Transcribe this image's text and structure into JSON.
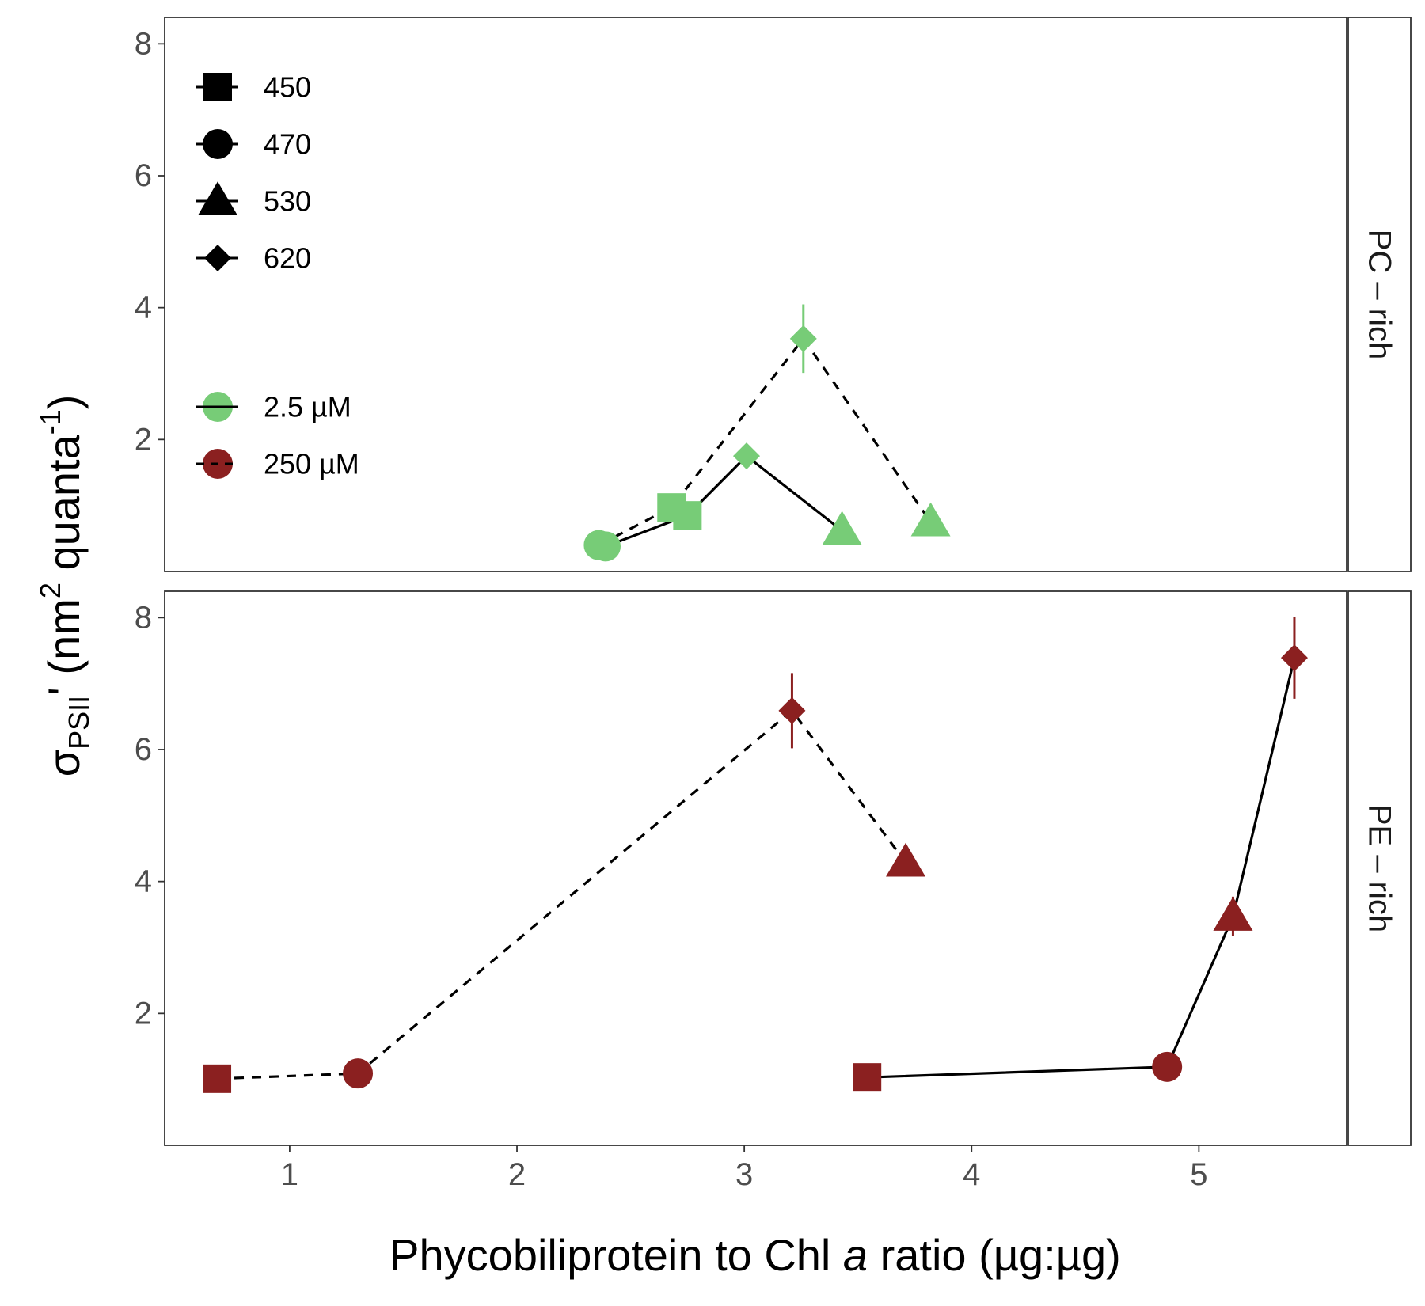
{
  "chart_data": {
    "type": "scatter",
    "xlabel_main": "Phycobiliprotein to Chl ",
    "xlabel_italic": "a",
    "xlabel_rest": " ratio (µg:µg)",
    "ylabel": {
      "sigma": "σ",
      "sub": "PSII",
      "prime": "'",
      "open": " (nm",
      "sup2": "2",
      "mid": " quanta",
      "supneg1": "-1",
      "close": ")"
    },
    "xlim": [
      0.45,
      5.65
    ],
    "ylim": [
      0,
      8.4
    ],
    "xticks": [
      1,
      2,
      3,
      4,
      5
    ],
    "yticks": [
      2,
      4,
      6,
      8
    ],
    "colors": {
      "low": "#77cc77",
      "high": "#8b2020",
      "line": "#000000"
    },
    "legend_shape": {
      "title": "",
      "entries": [
        {
          "label": "450",
          "shape": "square"
        },
        {
          "label": "470",
          "shape": "circle"
        },
        {
          "label": "530",
          "shape": "triangle"
        },
        {
          "label": "620",
          "shape": "diamond"
        }
      ]
    },
    "legend_conc": {
      "entries": [
        {
          "label": " 2.5 µM",
          "color": "low",
          "dash": "solid"
        },
        {
          "label": "250 µM",
          "color": "high",
          "dash": "dashed"
        }
      ]
    },
    "panels": [
      {
        "strip": "PC – rich",
        "series": [
          {
            "conc": " 2.5 µM",
            "color": "low",
            "dash": "solid",
            "points": [
              {
                "wl": "470",
                "x": 2.39,
                "y": 0.38,
                "err": 0.05
              },
              {
                "wl": "450",
                "x": 2.75,
                "y": 0.85,
                "err": 0.06
              },
              {
                "wl": "620",
                "x": 3.01,
                "y": 1.75,
                "err": 0.12
              },
              {
                "wl": "530",
                "x": 3.43,
                "y": 0.62,
                "err": 0.05
              }
            ]
          },
          {
            "conc": "250 µM",
            "color": "low",
            "dash": "dashed",
            "points": [
              {
                "wl": "470",
                "x": 2.36,
                "y": 0.4,
                "err": 0.05
              },
              {
                "wl": "450",
                "x": 2.68,
                "y": 0.97,
                "err": 0.06
              },
              {
                "wl": "620",
                "x": 3.26,
                "y": 3.53,
                "err": 0.52
              },
              {
                "wl": "530",
                "x": 3.82,
                "y": 0.75,
                "err": 0.06
              }
            ]
          }
        ]
      },
      {
        "strip": "PE – rich",
        "series": [
          {
            "conc": " 2.5 µM",
            "color": "high",
            "dash": "solid",
            "points": [
              {
                "wl": "450",
                "x": 3.54,
                "y": 1.03,
                "err": 0.05
              },
              {
                "wl": "470",
                "x": 4.86,
                "y": 1.19,
                "err": 0.06
              },
              {
                "wl": "530",
                "x": 5.15,
                "y": 3.47,
                "err": 0.3
              },
              {
                "wl": "620",
                "x": 5.42,
                "y": 7.39,
                "err": 0.62
              }
            ]
          },
          {
            "conc": "250 µM",
            "color": "high",
            "dash": "dashed",
            "points": [
              {
                "wl": "450",
                "x": 0.68,
                "y": 1.01,
                "err": 0.05
              },
              {
                "wl": "470",
                "x": 1.3,
                "y": 1.09,
                "err": 0.05
              },
              {
                "wl": "620",
                "x": 3.21,
                "y": 6.59,
                "err": 0.57
              },
              {
                "wl": "530",
                "x": 3.71,
                "y": 4.29,
                "err": 0.06
              }
            ]
          }
        ]
      }
    ]
  }
}
